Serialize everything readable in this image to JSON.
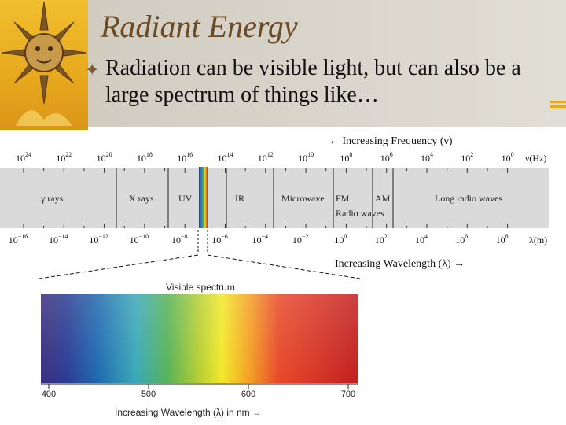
{
  "slide": {
    "title": "Radiant Energy",
    "bullet": "Radiation can be visible light, but can also be a large spectrum of things like…"
  },
  "em_spectrum": {
    "frequency_caption": "← Increasing Frequency (ν)",
    "frequency_ticks": [
      {
        "base": "10",
        "exp": "24"
      },
      {
        "base": "10",
        "exp": "22"
      },
      {
        "base": "10",
        "exp": "20"
      },
      {
        "base": "10",
        "exp": "18"
      },
      {
        "base": "10",
        "exp": "16"
      },
      {
        "base": "10",
        "exp": "14"
      },
      {
        "base": "10",
        "exp": "12"
      },
      {
        "base": "10",
        "exp": "10"
      },
      {
        "base": "10",
        "exp": "8"
      },
      {
        "base": "10",
        "exp": "6"
      },
      {
        "base": "10",
        "exp": "4"
      },
      {
        "base": "10",
        "exp": "2"
      },
      {
        "base": "10",
        "exp": "0"
      }
    ],
    "frequency_unit": "ν(Hz)",
    "bands": [
      "γ rays",
      "X rays",
      "UV",
      "IR",
      "Microwave",
      "FM",
      "AM",
      "Long radio waves"
    ],
    "radio_label": "Radio waves",
    "wavelength_ticks": [
      {
        "base": "10",
        "exp": "−16"
      },
      {
        "base": "10",
        "exp": "−14"
      },
      {
        "base": "10",
        "exp": "−12"
      },
      {
        "base": "10",
        "exp": "−10"
      },
      {
        "base": "10",
        "exp": "−8"
      },
      {
        "base": "10",
        "exp": "−6"
      },
      {
        "base": "10",
        "exp": "−4"
      },
      {
        "base": "10",
        "exp": "−2"
      },
      {
        "base": "10",
        "exp": "0"
      },
      {
        "base": "10",
        "exp": "2"
      },
      {
        "base": "10",
        "exp": "4"
      },
      {
        "base": "10",
        "exp": "6"
      },
      {
        "base": "10",
        "exp": "8"
      }
    ],
    "wavelength_unit": "λ(m)",
    "wavelength_caption": "Increasing Wavelength (λ) →"
  },
  "visible": {
    "title": "Visible spectrum",
    "ticks": [
      "400",
      "500",
      "600",
      "700"
    ],
    "caption": "Increasing Wavelength (λ) in nm →"
  },
  "colors": {
    "accent_gold": "#e8a81d",
    "title_brown": "#6b4a24",
    "band_gray": "#dadada"
  }
}
